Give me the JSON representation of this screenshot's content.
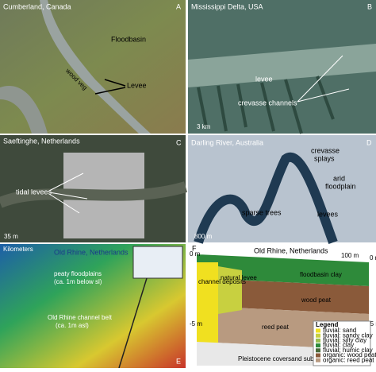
{
  "panels": [
    {
      "title": "Cumberland, Canada",
      "letter": "A",
      "labels": [
        "Floodbasin",
        "wood veg",
        "Levee"
      ]
    },
    {
      "title": "Mississippi Delta, USA",
      "letter": "B",
      "labels": [
        "levee",
        "crevasse channels"
      ],
      "scale": "3 km"
    },
    {
      "title": "Saeftinghe, Netherlands",
      "letter": "C",
      "labels": [
        "tidal levees"
      ],
      "scale": "35 m"
    },
    {
      "title": "Darling River, Australia",
      "letter": "D",
      "labels": [
        "crevasse",
        "splays",
        "arid",
        "floodplain",
        "sparse trees",
        "levees"
      ],
      "scale": "800 m"
    },
    {
      "title": "Old Rhine, Netherlands",
      "letter": "E",
      "labels": [
        "peaty floodplains",
        "(ca. 1m below sl)",
        "Old Rhine channel belt",
        "(ca. 1m asl)"
      ],
      "scale": "Kilometers"
    },
    {
      "title": "Old Rhine, Netherlands",
      "letter": "F",
      "labels": [
        "floodbasin clay",
        "wood peat",
        "reed peat",
        "channel deposits",
        "natural levee",
        "Pleistocene coversand substrate"
      ],
      "scale": "100 m",
      "axis": [
        "0 m",
        "-5 m"
      ],
      "legend": {
        "title": "Legend",
        "items": [
          "fluvial: sand",
          "fluvial: sandy clay",
          "fluvial: silty clay",
          "fluvial: clay",
          "fluvial: humic clay",
          "organic: wood peat",
          "organic: reed peat"
        ]
      }
    }
  ]
}
